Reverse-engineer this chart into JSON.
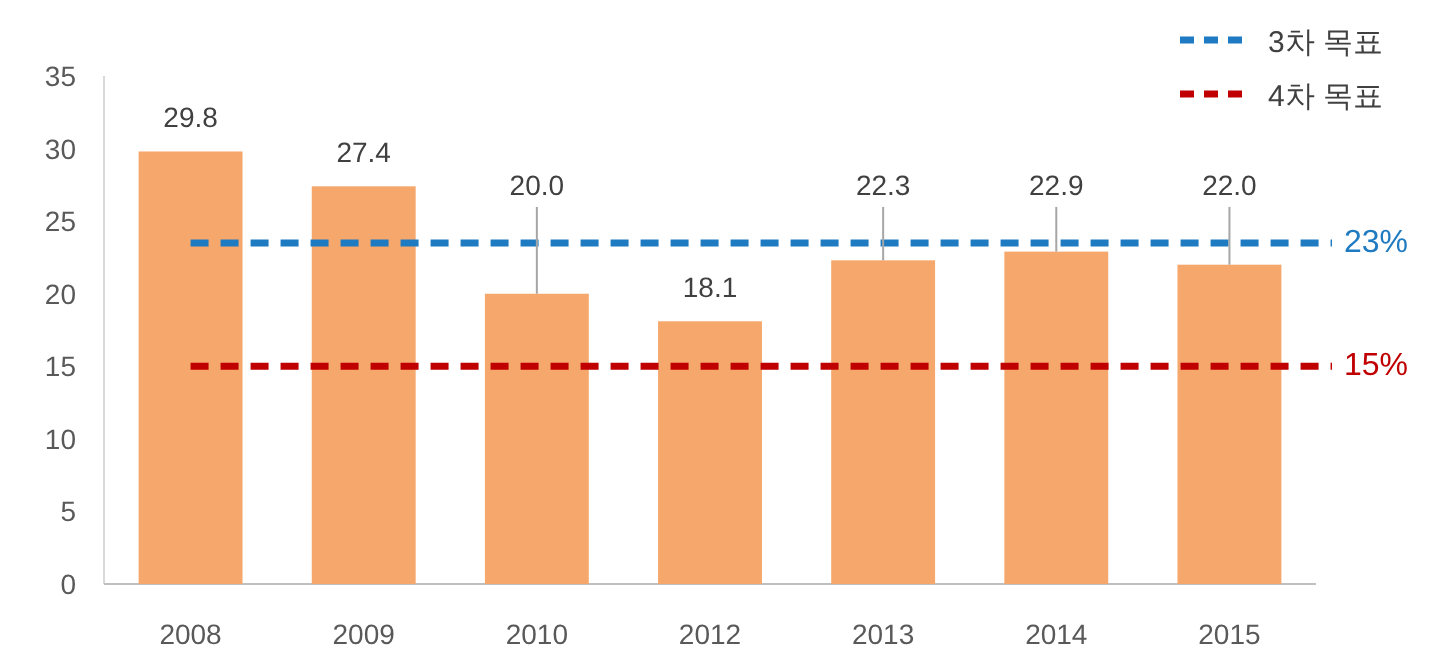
{
  "chart_data": {
    "type": "bar",
    "categories": [
      "2008",
      "2009",
      "2010",
      "2012",
      "2013",
      "2014",
      "2015"
    ],
    "series": [
      {
        "color": "#f5a76c",
        "values": [
          29.8,
          27.4,
          20.0,
          18.1,
          22.3,
          22.9,
          22.0
        ],
        "value_labels": [
          "29.8",
          "27.4",
          "20.0",
          "18.1",
          "22.3",
          "22.9",
          "22.0"
        ]
      },
      {
        "type": "line",
        "name": "3차 목표",
        "color": "#1f7bc1",
        "line_style": "dashed",
        "marker": "none",
        "values": [
          23.5,
          23.5,
          23.5,
          23.5,
          23.5,
          23.5,
          23.5
        ]
      },
      {
        "type": "line",
        "name": "4차 목표",
        "color": "#c00000",
        "line_style": "dashed",
        "marker": "none",
        "values": [
          15,
          15,
          15,
          15,
          15,
          15,
          15
        ]
      }
    ],
    "annotations": [
      "23%",
      "15%"
    ],
    "ylim": [
      0,
      35
    ],
    "yticks": [
      0,
      5,
      10,
      15,
      20,
      25,
      30,
      35
    ],
    "grid": false,
    "legend": "top right"
  }
}
